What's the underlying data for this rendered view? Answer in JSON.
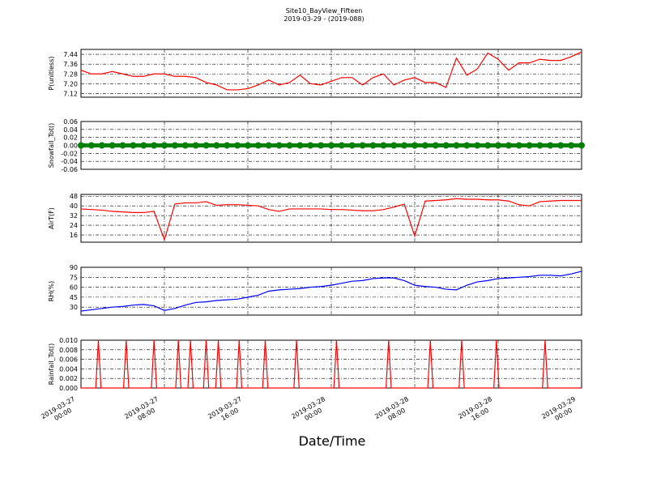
{
  "chart_data": {
    "type": "panels",
    "title": "Site10_BayView_Fifteen",
    "subtitle": "2019-03-29 - (2019-088)",
    "xlabel": "Date/Time",
    "grid": true,
    "x": [
      "2019-03-27 00:00",
      "2019-03-27 01:00",
      "2019-03-27 02:00",
      "2019-03-27 03:00",
      "2019-03-27 04:00",
      "2019-03-27 05:00",
      "2019-03-27 06:00",
      "2019-03-27 07:00",
      "2019-03-27 08:00",
      "2019-03-27 09:00",
      "2019-03-27 10:00",
      "2019-03-27 11:00",
      "2019-03-27 12:00",
      "2019-03-27 13:00",
      "2019-03-27 14:00",
      "2019-03-27 15:00",
      "2019-03-27 16:00",
      "2019-03-27 17:00",
      "2019-03-27 18:00",
      "2019-03-27 19:00",
      "2019-03-27 20:00",
      "2019-03-27 21:00",
      "2019-03-27 22:00",
      "2019-03-27 23:00",
      "2019-03-28 00:00",
      "2019-03-28 01:00",
      "2019-03-28 02:00",
      "2019-03-28 03:00",
      "2019-03-28 04:00",
      "2019-03-28 05:00",
      "2019-03-28 06:00",
      "2019-03-28 07:00",
      "2019-03-28 08:00",
      "2019-03-28 09:00",
      "2019-03-28 10:00",
      "2019-03-28 11:00",
      "2019-03-28 12:00",
      "2019-03-28 13:00",
      "2019-03-28 14:00",
      "2019-03-28 15:00",
      "2019-03-28 16:00",
      "2019-03-28 17:00",
      "2019-03-28 18:00",
      "2019-03-28 19:00",
      "2019-03-28 20:00",
      "2019-03-28 21:00",
      "2019-03-28 22:00",
      "2019-03-28 23:00",
      "2019-03-29 00:00"
    ],
    "xlim": [
      "2019-03-27 00:00",
      "2019-03-29 00:00"
    ],
    "xticks": [
      "2019-03-27 00:00",
      "2019-03-27 08:00",
      "2019-03-27 16:00",
      "2019-03-28 00:00",
      "2019-03-28 08:00",
      "2019-03-28 16:00",
      "2019-03-29 00:00"
    ],
    "panels": [
      {
        "type": "line",
        "ylabel": "P(unitless)",
        "color": "#ff0000",
        "ylim": [
          7.09,
          7.48
        ],
        "yticks": [
          7.12,
          {
            "value": 7.2,
            "label": "7.20"
          },
          7.28,
          7.36,
          7.44
        ],
        "values": [
          7.31,
          7.28,
          7.28,
          7.3,
          7.28,
          7.26,
          7.26,
          7.28,
          7.28,
          7.26,
          7.26,
          7.25,
          7.21,
          7.19,
          7.15,
          7.15,
          7.16,
          7.19,
          7.23,
          7.19,
          7.21,
          7.27,
          7.2,
          7.19,
          7.22,
          7.25,
          7.25,
          7.19,
          7.25,
          7.28,
          7.19,
          7.23,
          7.25,
          7.21,
          7.21,
          7.17,
          7.41,
          7.27,
          7.32,
          7.45,
          7.4,
          7.31,
          7.37,
          7.37,
          7.4,
          7.39,
          7.39,
          7.42,
          7.46
        ]
      },
      {
        "type": "scatter",
        "ylabel": "Snowfall_Tot()",
        "color": "#008000",
        "ylim": [
          -0.06,
          0.06
        ],
        "yticks": [
          -0.06,
          -0.04,
          -0.02,
          {
            "value": 0,
            "label": "0.00"
          },
          0.02,
          0.04,
          0.06
        ],
        "values": [
          0,
          0,
          0,
          0,
          0,
          0,
          0,
          0,
          0,
          0,
          0,
          0,
          0,
          0,
          0,
          0,
          0,
          0,
          0,
          0,
          0,
          0,
          0,
          0,
          0,
          0,
          0,
          0,
          0,
          0,
          0,
          0,
          0,
          0,
          0,
          0,
          0,
          0,
          0,
          0,
          0,
          0,
          0,
          0,
          0,
          0,
          0,
          0,
          0
        ]
      },
      {
        "type": "line",
        "ylabel": "AirT(F)",
        "color": "#ff0000",
        "ylim": [
          10,
          49.5
        ],
        "yticks": [
          16,
          24,
          32,
          40,
          48
        ],
        "values": [
          37.5,
          37,
          36.5,
          35.5,
          35,
          34.5,
          34.5,
          35.5,
          12,
          41.5,
          42.5,
          42.5,
          43.5,
          40.5,
          41,
          41,
          40.5,
          40,
          37,
          35.5,
          37.5,
          37.5,
          37.5,
          37.5,
          37,
          37,
          36.5,
          36,
          36,
          37,
          39,
          41.5,
          15,
          44,
          44.5,
          45,
          46,
          45.5,
          45.5,
          45,
          45,
          44,
          41,
          40,
          43.5,
          44,
          44.5,
          44.5,
          44.5
        ]
      },
      {
        "type": "line",
        "ylabel": "RH(%)",
        "color": "#0000ff",
        "ylim": [
          18,
          90
        ],
        "yticks": [
          30,
          45,
          60,
          75,
          90
        ],
        "values": [
          24,
          26,
          28,
          30,
          31,
          33,
          34,
          32,
          25,
          28,
          33,
          37,
          38,
          40,
          41,
          42,
          45,
          48,
          54,
          56,
          57,
          58,
          60,
          61,
          63,
          66,
          69,
          70,
          73,
          74,
          74,
          70,
          63,
          61,
          60,
          57,
          56,
          63,
          68,
          70,
          73,
          74,
          75,
          76,
          78,
          78,
          77,
          80,
          84
        ]
      },
      {
        "type": "line",
        "ylabel": "Rainfall_Tot()",
        "color": "#ff0000",
        "ylim": [
          0,
          0.01
        ],
        "yticks": [
          {
            "value": 0,
            "label": "0.000"
          },
          0.002,
          0.004,
          0.006,
          0.008,
          {
            "value": 0.01,
            "label": "0.010"
          }
        ],
        "x": [
          "2019-03-27 00:00",
          "2019-03-27 01:25",
          "2019-03-27 01:40",
          "2019-03-27 01:55",
          "2019-03-27 04:05",
          "2019-03-27 04:20",
          "2019-03-27 04:35",
          "2019-03-27 06:45",
          "2019-03-27 07:00",
          "2019-03-27 07:15",
          "2019-03-27 09:05",
          "2019-03-27 09:20",
          "2019-03-27 09:35",
          "2019-03-27 10:15",
          "2019-03-27 10:30",
          "2019-03-27 10:45",
          "2019-03-27 11:45",
          "2019-03-27 12:00",
          "2019-03-27 12:15",
          "2019-03-27 12:55",
          "2019-03-27 13:10",
          "2019-03-27 13:25",
          "2019-03-27 14:55",
          "2019-03-27 15:10",
          "2019-03-27 15:25",
          "2019-03-27 17:25",
          "2019-03-27 17:40",
          "2019-03-27 17:55",
          "2019-03-27 20:25",
          "2019-03-27 20:40",
          "2019-03-27 20:55",
          "2019-03-28 00:15",
          "2019-03-28 00:30",
          "2019-03-28 00:45",
          "2019-03-28 05:15",
          "2019-03-28 05:30",
          "2019-03-28 05:45",
          "2019-03-28 09:15",
          "2019-03-28 09:30",
          "2019-03-28 09:45",
          "2019-03-28 12:15",
          "2019-03-28 12:30",
          "2019-03-28 12:45",
          "2019-03-28 15:35",
          "2019-03-28 15:50",
          "2019-03-28 16:05",
          "2019-03-28 20:15",
          "2019-03-28 20:30",
          "2019-03-28 20:45",
          "2019-03-29 00:00"
        ],
        "values": [
          0,
          0,
          0.01,
          0,
          0,
          0.01,
          0,
          0,
          0.01,
          0,
          0,
          0.01,
          0,
          0,
          0.01,
          0,
          0,
          0.01,
          0,
          0,
          0.01,
          0,
          0,
          0.01,
          0,
          0,
          0.01,
          0,
          0,
          0.01,
          0,
          0,
          0.01,
          0,
          0,
          0.01,
          0,
          0,
          0.01,
          0,
          0,
          0.01,
          0,
          0,
          0.01,
          0,
          0,
          0.01,
          0,
          0
        ]
      }
    ]
  }
}
